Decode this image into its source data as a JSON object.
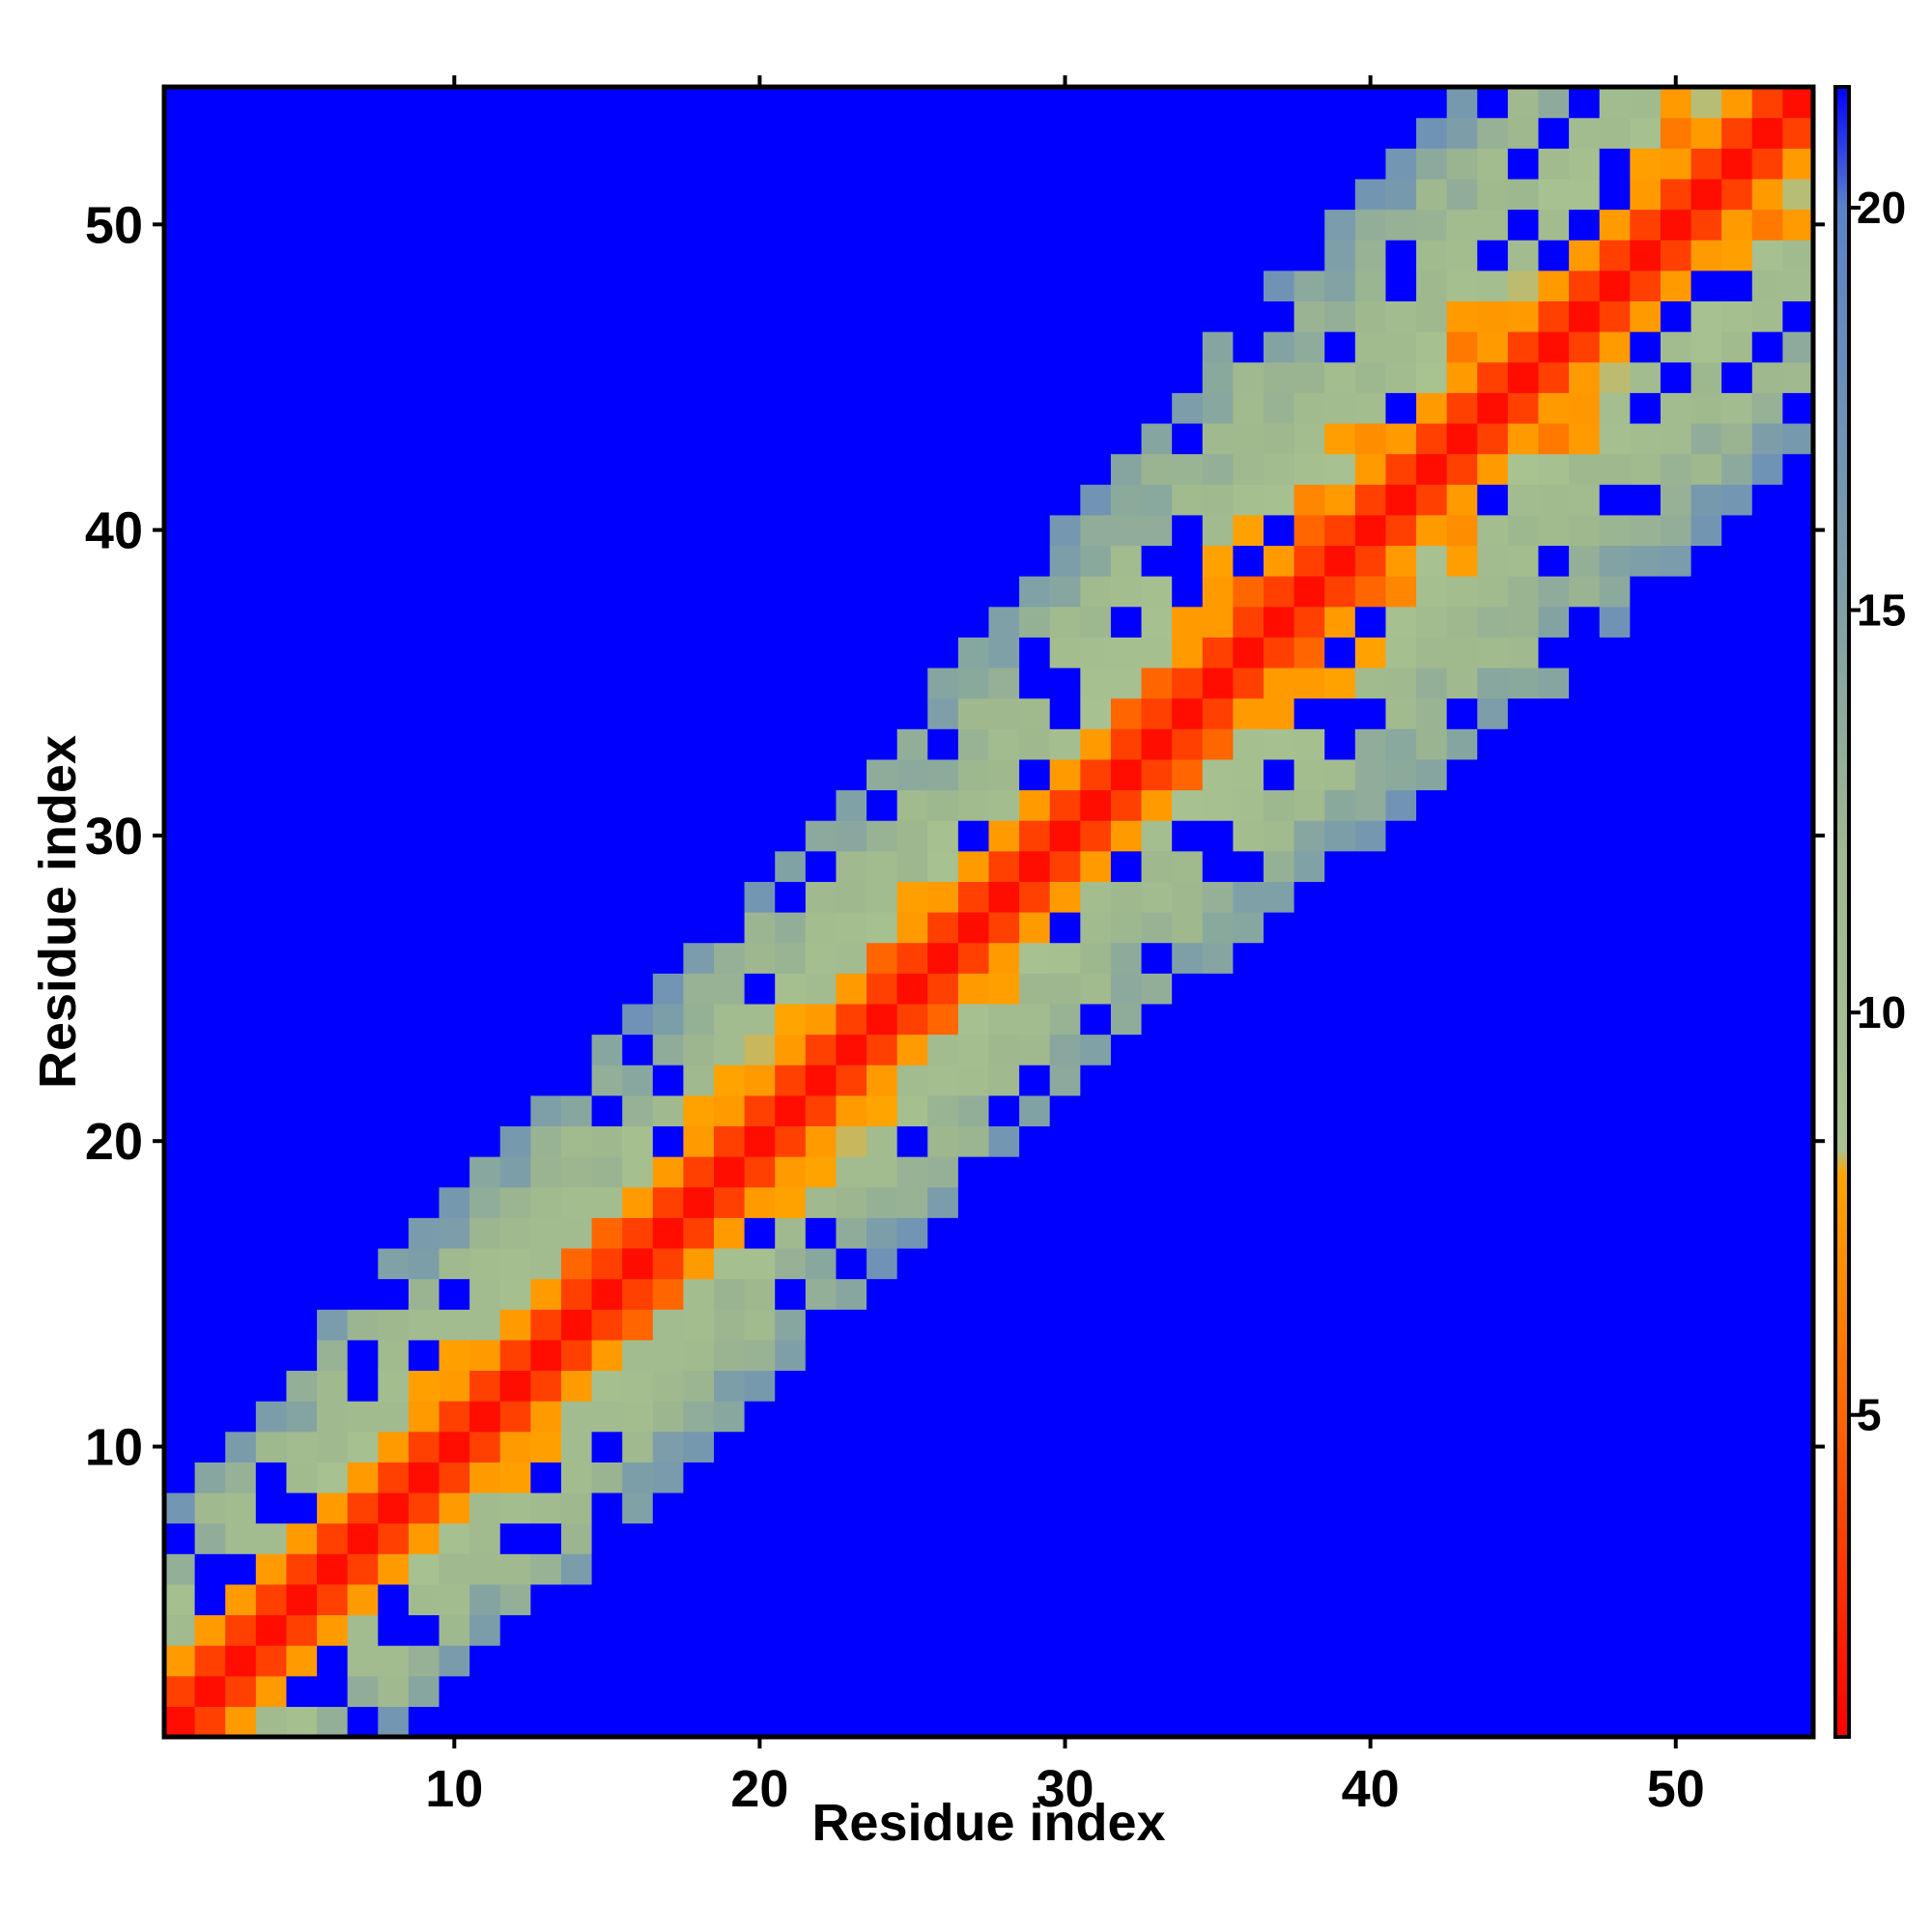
{
  "chart_data": {
    "type": "heatmap",
    "title": "",
    "xlabel": "Residue index",
    "ylabel": "Residue index",
    "n_residues": 54,
    "xlim": [
      0.5,
      54.5
    ],
    "ylim": [
      0.5,
      54.5
    ],
    "x_ticks": [
      10,
      20,
      30,
      40,
      50
    ],
    "y_ticks": [
      10,
      20,
      30,
      40,
      50
    ],
    "x_tick_labels": [
      "10",
      "20",
      "30",
      "40",
      "50"
    ],
    "y_tick_labels": [
      "10",
      "20",
      "30",
      "40",
      "50"
    ],
    "value_description": "symmetric residue-residue distance matrix; diagonal band of low values, off-band cells above cutoff",
    "color_scale": {
      "range": [
        1,
        21.5
      ],
      "ticks": [
        5,
        10,
        15,
        20
      ],
      "tick_labels": [
        "5",
        "10",
        "15",
        "20"
      ],
      "stops": [
        {
          "value": 1,
          "color": "#ff0000"
        },
        {
          "value": 5,
          "color": "#ff6600"
        },
        {
          "value": 8,
          "color": "#ffa500"
        },
        {
          "value": 8.3,
          "color": "#a8c290"
        },
        {
          "value": 12,
          "color": "#9fb88e"
        },
        {
          "value": 15,
          "color": "#7fa0a6"
        },
        {
          "value": 20,
          "color": "#5b82c9"
        },
        {
          "value": 21.5,
          "color": "#0000ff"
        }
      ],
      "position": "right"
    },
    "band_profile": {
      "description": "approximate value vs |i-j| separation near diagonal",
      "separation": [
        0,
        1,
        2,
        3,
        4,
        5,
        6,
        7,
        8
      ],
      "value": [
        2,
        3.5,
        7.5,
        10,
        11,
        12,
        13.5,
        15.5,
        22
      ]
    },
    "band_halfwidth_by_residue": {
      "residue": [
        1,
        10,
        20,
        30,
        40,
        54
      ],
      "halfwidth": [
        7,
        8,
        8,
        9,
        11,
        11
      ]
    },
    "background_value": 22
  }
}
